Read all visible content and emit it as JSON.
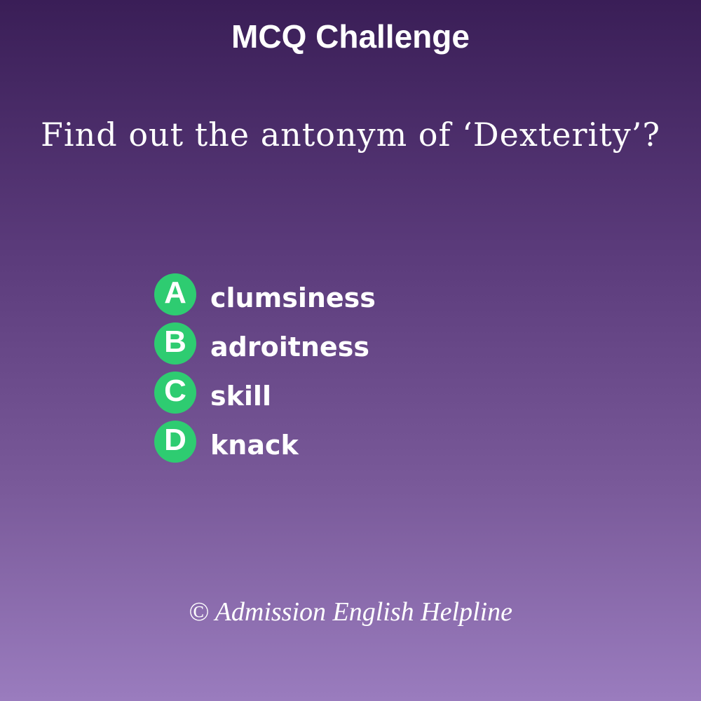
{
  "header": {
    "title": "MCQ Challenge"
  },
  "question": {
    "text": "Find out the antonym of ‘Dexterity’?"
  },
  "options": [
    {
      "letter": "A",
      "text": "clumsiness"
    },
    {
      "letter": "B",
      "text": "adroitness"
    },
    {
      "letter": "C",
      "text": "skill"
    },
    {
      "letter": "D",
      "text": "knack"
    }
  ],
  "footer": {
    "copyright": "© Admission English Helpline"
  },
  "colors": {
    "badge": "#2ecc71",
    "text": "#ffffff",
    "background_top": "#3a1e57",
    "background_bottom": "#9a7cbe"
  }
}
